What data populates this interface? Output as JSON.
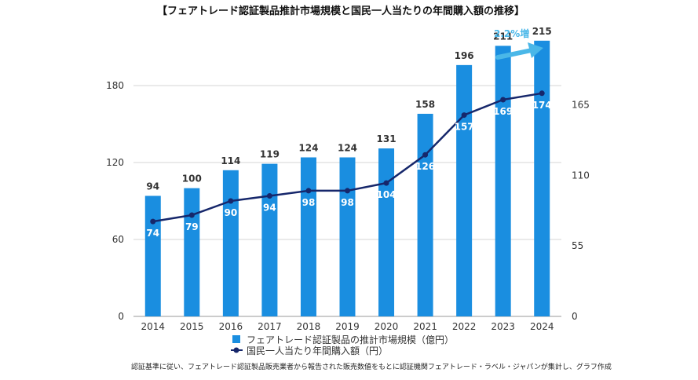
{
  "chart_data": {
    "type": "bar",
    "title": "【フェアトレード認証製品推計市場規模と国民一人当たりの年間購入額の推移】",
    "categories": [
      "2014",
      "2015",
      "2016",
      "2017",
      "2018",
      "2019",
      "2020",
      "2021",
      "2022",
      "2023",
      "2024"
    ],
    "series": [
      {
        "name": "フェアトレード認証製品の推計市場規模（億円）",
        "type": "bar",
        "axis": "left",
        "values": [
          94,
          100,
          114,
          119,
          124,
          124,
          131,
          158,
          196,
          211,
          215
        ],
        "color": "#1a8ee0"
      },
      {
        "name": "国民一人当たり年間購入額（円）",
        "type": "line",
        "axis": "right",
        "values": [
          74,
          79,
          90,
          94,
          98,
          98,
          104,
          126,
          157,
          169,
          174
        ],
        "color": "#16276b"
      }
    ],
    "left_axis": {
      "ticks": [
        0,
        60,
        120,
        180
      ],
      "ylim": [
        0,
        210
      ]
    },
    "right_axis": {
      "ticks": [
        0,
        55,
        110,
        165
      ],
      "ylim": [
        0,
        210
      ]
    },
    "grid": true,
    "legend_position": "bottom-center",
    "annotation": "2.2%増",
    "annotation_color": "#4ab7e8",
    "note": "認証基準に従い、フェアトレード認証製品販売業者から報告された販売数値をもとに認証機関フェアトレード・ラベル・ジャパンが集計し、グラフ作成"
  }
}
